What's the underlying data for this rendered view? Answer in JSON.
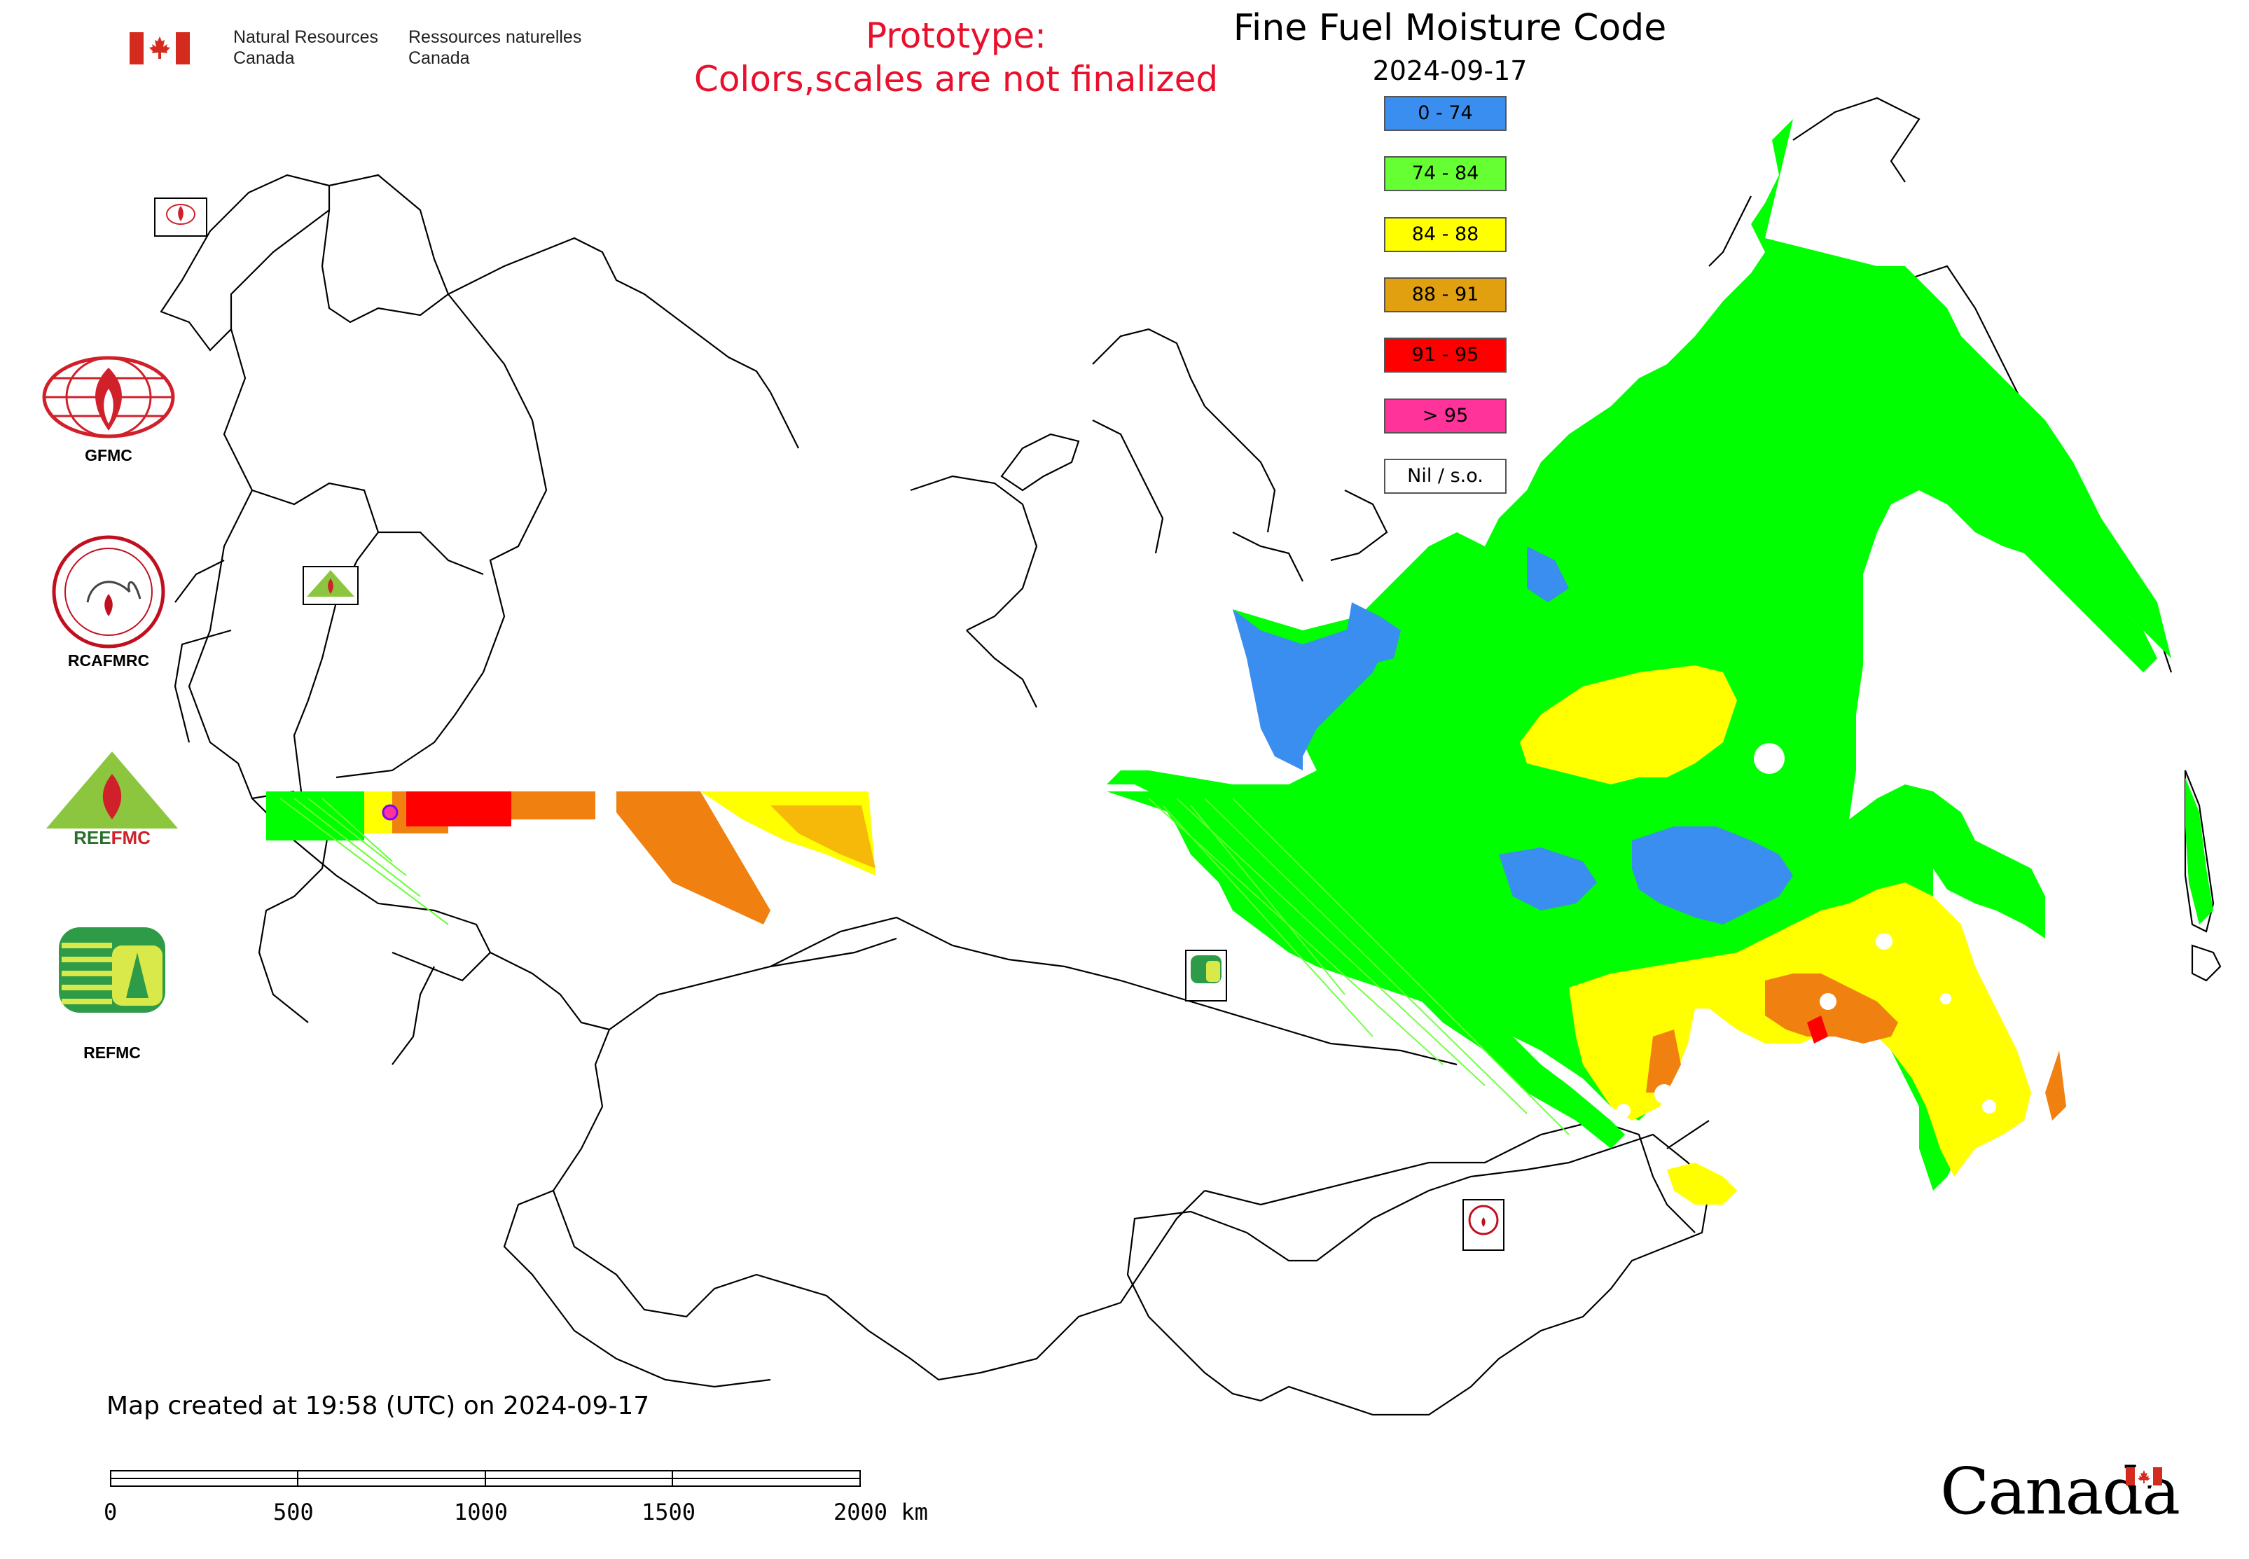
{
  "header": {
    "dept_en_line1": "Natural Resources",
    "dept_en_line2": "Canada",
    "dept_fr_line1": "Ressources naturelles",
    "dept_fr_line2": "Canada",
    "prototype_line1": "Prototype:",
    "prototype_line2": "Colors,scales are not finalized"
  },
  "map": {
    "title": "Fine Fuel Moisture Code",
    "date": "2024-09-17",
    "created_note": "Map created at 19:58 (UTC) on 2024-09-17"
  },
  "legend": {
    "items": [
      {
        "label": "0 - 74",
        "color": "#3a8ef0"
      },
      {
        "label": "74 - 84",
        "color": "#66ff33"
      },
      {
        "label": "84 - 88",
        "color": "#ffff00"
      },
      {
        "label": "88 - 91",
        "color": "#e0a010"
      },
      {
        "label": "91 - 95",
        "color": "#ff0000"
      },
      {
        "label": "> 95",
        "color": "#ff3399"
      },
      {
        "label": "Nil / s.o.",
        "color": "#ffffff"
      }
    ]
  },
  "organizations": {
    "gfmc": "GFMC",
    "rcafmrc": "RCAFMRC",
    "reefmc": "REEFMC",
    "refmc": "REFMC"
  },
  "scale": {
    "labels": [
      "0",
      "500",
      "1000",
      "1500",
      "2000 km"
    ]
  },
  "wordmark": "Canada",
  "colors": {
    "fire_red": "#e8112d",
    "map_green": "#00ff00",
    "light_green": "#66ff33",
    "blue": "#3a8ef0",
    "yellow": "#ffff00",
    "orange": "#f08010",
    "dark_red": "#ff0000"
  }
}
